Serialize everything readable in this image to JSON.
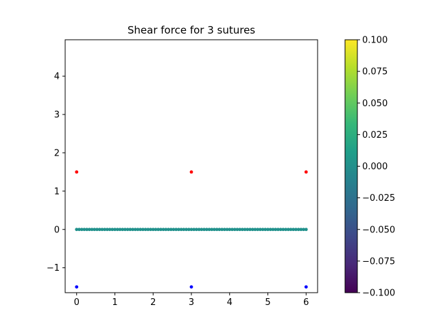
{
  "chart_data": {
    "type": "scatter",
    "title": "Shear force for 3 sutures",
    "xlabel": "",
    "ylabel": "",
    "xlim": [
      -0.3,
      6.3
    ],
    "ylim": [
      -1.65,
      4.95
    ],
    "x_ticks": [
      0,
      1,
      2,
      3,
      4,
      5,
      6
    ],
    "y_ticks": [
      -1,
      0,
      1,
      2,
      3,
      4
    ],
    "grid": false,
    "series": [
      {
        "color": "#ff0000",
        "points": [
          [
            0,
            1.5
          ],
          [
            3,
            1.5
          ],
          [
            6,
            1.5
          ]
        ]
      },
      {
        "color": "#0000ff",
        "points": [
          [
            0,
            -1.5
          ],
          [
            3,
            -1.5
          ],
          [
            6,
            -1.5
          ]
        ]
      },
      {
        "color": "#21918c",
        "x_range": [
          0,
          6
        ],
        "count": 91,
        "y": 0
      }
    ],
    "colorbar": {
      "colormap": "viridis",
      "range": [
        -0.1,
        0.1
      ],
      "tick_labels": [
        "0.100",
        "0.075",
        "0.050",
        "0.025",
        "0.000",
        "−0.025",
        "−0.050",
        "−0.075",
        "−0.100"
      ],
      "tick_values": [
        0.1,
        0.075,
        0.05,
        0.025,
        0.0,
        -0.025,
        -0.05,
        -0.075,
        -0.1
      ]
    }
  }
}
